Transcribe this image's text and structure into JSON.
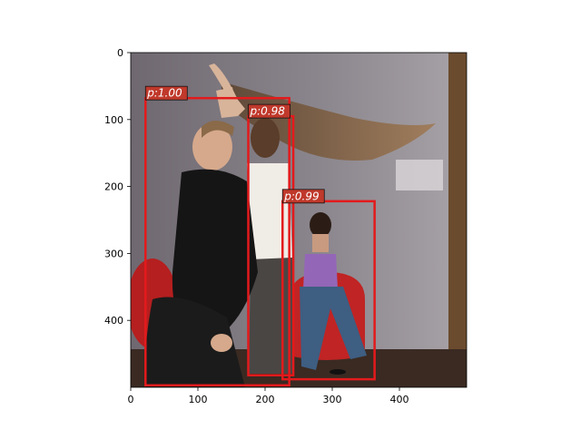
{
  "figure": {
    "image_description_name": "dancers-photo",
    "axes": {
      "x_ticks": [
        "0",
        "100",
        "200",
        "300",
        "400"
      ],
      "y_ticks": [
        "0",
        "100",
        "200",
        "300",
        "400"
      ],
      "xlim": [
        0,
        500
      ],
      "ylim": [
        500,
        0
      ]
    },
    "detections": [
      {
        "label": "p:1.00",
        "x0": 22,
        "y0": 68,
        "x1": 236,
        "y1": 497
      },
      {
        "label": "p:0.98",
        "x0": 175,
        "y0": 95,
        "x1": 242,
        "y1": 482
      },
      {
        "label": "p:0.99",
        "x0": 226,
        "y0": 222,
        "x1": 363,
        "y1": 488
      }
    ],
    "colors": {
      "box": "#e31a1c",
      "label_bg": "#c0392b",
      "label_text": "#ffffff"
    }
  }
}
